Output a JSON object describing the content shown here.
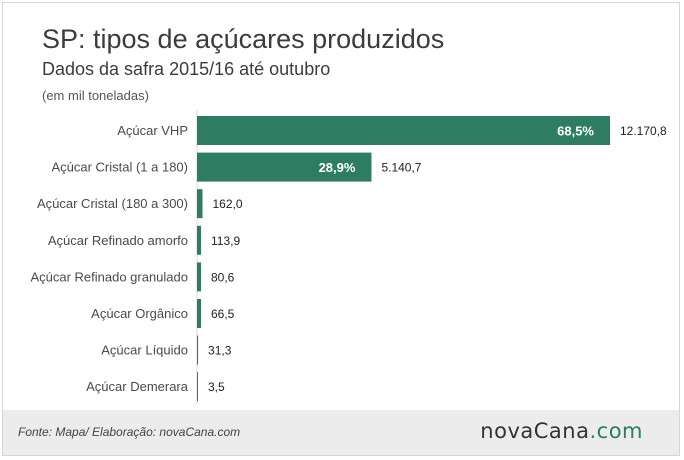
{
  "header": {
    "title": "SP: tipos de açúcares produzidos",
    "subtitle": "Dados da safra 2015/16 até outubro",
    "unit": "(em mil toneladas)"
  },
  "footer": {
    "source": "Fonte: Mapa/ Elaboração: novaCana.com",
    "logo_text": "novaCana",
    "logo_suffix": ".com"
  },
  "colors": {
    "bar": "#2e7d63",
    "logo_accent": "#2e7d63"
  },
  "chart_data": {
    "type": "bar",
    "orientation": "horizontal",
    "categories": [
      "Açúcar VHP",
      "Açúcar Cristal (1 a 180)",
      "Açúcar Cristal (180 a 300)",
      "Açúcar Refinado amorfo",
      "Açúcar Refinado granulado",
      "Açúcar Orgânico",
      "Açúcar Líquido",
      "Açúcar Demerara"
    ],
    "values": [
      12170.8,
      5140.7,
      162.0,
      113.9,
      80.6,
      66.5,
      31.3,
      3.5
    ],
    "value_labels": [
      "12.170,8",
      "5.140,7",
      "162,0",
      "113,9",
      "80,6",
      "66,5",
      "31,3",
      "3,5"
    ],
    "percent_labels": [
      "68,5%",
      "28,9%",
      "",
      "",
      "",
      "",
      "",
      ""
    ],
    "xlim": [
      0,
      12170.8
    ],
    "grid": false,
    "legend": "none"
  }
}
